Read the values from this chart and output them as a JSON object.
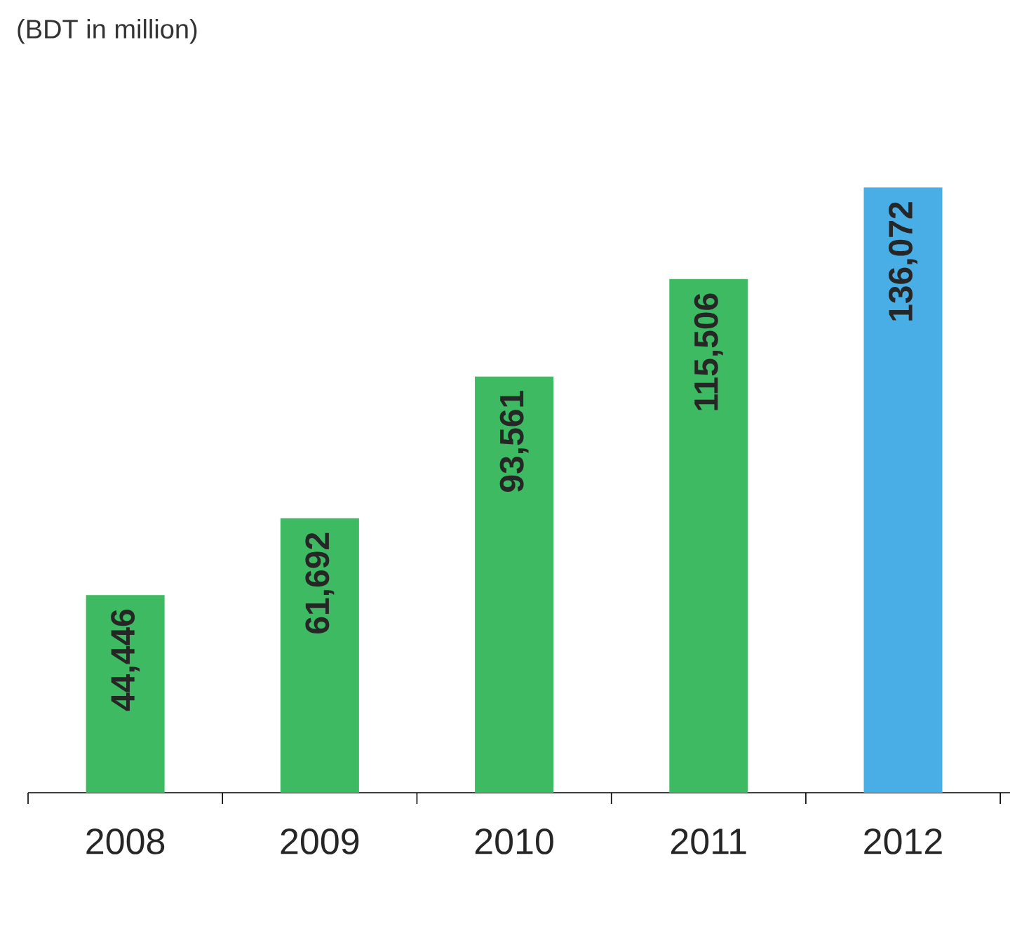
{
  "chart_data": {
    "type": "bar",
    "annotations": [
      "(BDT in million)"
    ],
    "categories": [
      "2008",
      "2009",
      "2010",
      "2011",
      "2012"
    ],
    "values": [
      44446,
      61692,
      93561,
      115506,
      136072
    ],
    "value_labels": [
      "44,446",
      "61,692",
      "93,561",
      "115,506",
      "136,072"
    ],
    "colors": [
      "#3dba62",
      "#3dba62",
      "#3dba62",
      "#3dba62",
      "#4aaee6"
    ]
  }
}
